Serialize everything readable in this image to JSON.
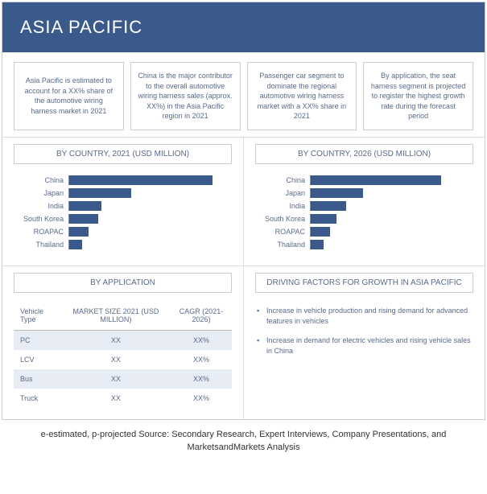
{
  "header": {
    "title": "ASIA PACIFIC"
  },
  "colors": {
    "primary": "#3a5a8c",
    "border": "#cccccc",
    "text_muted": "#5a6a8a",
    "alt_row": "#e8ecf4",
    "bg": "#ffffff"
  },
  "info_boxes": [
    "Asia Pacific is estimated to account for a XX% share of the automotive wiring harness market in 2021",
    "China is the major contributor to the overall automotive wiring harness sales (approx. XX%) in the Asia Pacific region in 2021",
    "Passenger car segment to dominate the regional automotive wiring harness market with a XX% share in 2021",
    "By application, the seat harness segment is projected to register the highest growth rate during the forecast period"
  ],
  "chart_2021": {
    "title": "BY COUNTRY, 2021 (USD MILLION)",
    "type": "bar",
    "max": 100,
    "bar_color": "#3a5a8c",
    "items": [
      {
        "label": "China",
        "value": 88
      },
      {
        "label": "Japan",
        "value": 38
      },
      {
        "label": "India",
        "value": 20
      },
      {
        "label": "South Korea",
        "value": 18
      },
      {
        "label": "ROAPAC",
        "value": 12
      },
      {
        "label": "Thailand",
        "value": 8
      }
    ]
  },
  "chart_2026": {
    "title": "BY COUNTRY, 2026 (USD MILLION)",
    "type": "bar",
    "max": 100,
    "bar_color": "#3a5a8c",
    "items": [
      {
        "label": "China",
        "value": 80
      },
      {
        "label": "Japan",
        "value": 32
      },
      {
        "label": "India",
        "value": 22
      },
      {
        "label": "South Korea",
        "value": 16
      },
      {
        "label": "ROAPAC",
        "value": 12
      },
      {
        "label": "Thailand",
        "value": 8
      }
    ]
  },
  "application": {
    "title": "BY APPLICATION",
    "columns": [
      "Vehicle Type",
      "MARKET SIZE 2021 (USD MILLION)",
      "CAGR (2021-2026)"
    ],
    "rows": [
      {
        "type": "PC",
        "size": "XX",
        "cagr": "XX%"
      },
      {
        "type": "LCV",
        "size": "XX",
        "cagr": "XX%"
      },
      {
        "type": "Bus",
        "size": "XX",
        "cagr": "XX%"
      },
      {
        "type": "Truck",
        "size": "XX",
        "cagr": "XX%"
      }
    ]
  },
  "drivers": {
    "title": "DRIVING FACTORS FOR GROWTH IN ASIA PACIFIC",
    "items": [
      "Increase in vehicle production and rising demand for advanced features in vehicles",
      "Increase in demand for electric vehicles and rising vehicle sales in China"
    ]
  },
  "footer": "e-estimated, p-projected Source: Secondary Research, Expert Interviews, Company Presentations, and MarketsandMarkets Analysis"
}
